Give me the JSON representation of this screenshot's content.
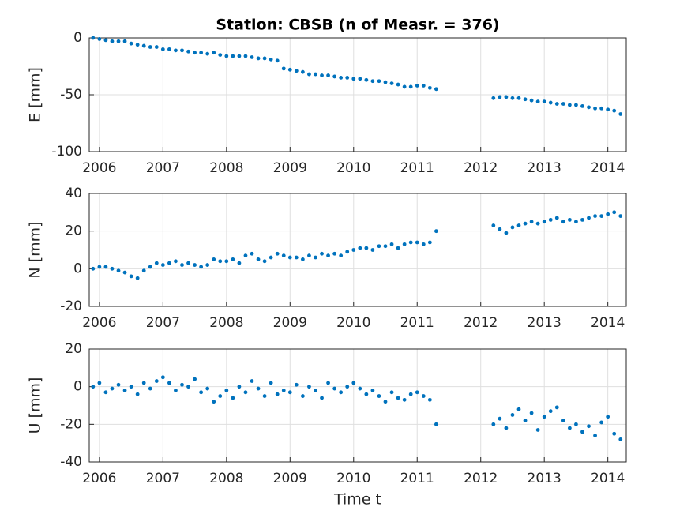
{
  "chart_data": [
    {
      "type": "scatter",
      "title": "Station: CBSB (n of Measr. = 376)",
      "ylabel": "E [mm]",
      "color": "#0072bd",
      "grid": true,
      "xlim": [
        2005.84,
        2014.29
      ],
      "xticks": [
        2006,
        2007,
        2008,
        2009,
        2010,
        2011,
        2012,
        2013,
        2014
      ],
      "ylim": [
        -100,
        0
      ],
      "yticks": [
        -100,
        -50,
        0
      ],
      "x": [
        2005.9,
        2006.0,
        2006.1,
        2006.2,
        2006.3,
        2006.4,
        2006.5,
        2006.6,
        2006.7,
        2006.8,
        2006.9,
        2007.0,
        2007.1,
        2007.2,
        2007.3,
        2007.4,
        2007.5,
        2007.6,
        2007.7,
        2007.8,
        2007.9,
        2008.0,
        2008.1,
        2008.2,
        2008.3,
        2008.4,
        2008.5,
        2008.6,
        2008.7,
        2008.8,
        2008.9,
        2009.0,
        2009.1,
        2009.2,
        2009.3,
        2009.4,
        2009.5,
        2009.6,
        2009.7,
        2009.8,
        2009.9,
        2010.0,
        2010.1,
        2010.2,
        2010.3,
        2010.4,
        2010.5,
        2010.6,
        2010.7,
        2010.8,
        2010.9,
        2011.0,
        2011.1,
        2011.2,
        2011.3,
        2012.2,
        2012.3,
        2012.4,
        2012.5,
        2012.6,
        2012.7,
        2012.8,
        2012.9,
        2013.0,
        2013.1,
        2013.2,
        2013.3,
        2013.4,
        2013.5,
        2013.6,
        2013.7,
        2013.8,
        2013.9,
        2014.0,
        2014.1,
        2014.2
      ],
      "values": [
        0,
        -1,
        -2,
        -3,
        -3,
        -3,
        -5,
        -6,
        -7,
        -8,
        -8,
        -10,
        -10,
        -11,
        -11,
        -12,
        -13,
        -13,
        -14,
        -13,
        -15,
        -16,
        -16,
        -16,
        -16,
        -17,
        -18,
        -18,
        -19,
        -20,
        -27,
        -28,
        -29,
        -30,
        -32,
        -32,
        -33,
        -33,
        -34,
        -35,
        -35,
        -36,
        -36,
        -37,
        -38,
        -38,
        -39,
        -40,
        -41,
        -43,
        -43,
        -42,
        -42,
        -44,
        -45,
        -53,
        -52,
        -52,
        -53,
        -53,
        -54,
        -55,
        -56,
        -56,
        -57,
        -58,
        -58,
        -59,
        -59,
        -60,
        -61,
        -62,
        -62,
        -63,
        -64,
        -67
      ]
    },
    {
      "type": "scatter",
      "ylabel": "N [mm]",
      "color": "#0072bd",
      "grid": true,
      "xlim": [
        2005.84,
        2014.29
      ],
      "xticks": [
        2006,
        2007,
        2008,
        2009,
        2010,
        2011,
        2012,
        2013,
        2014
      ],
      "ylim": [
        -20,
        40
      ],
      "yticks": [
        -20,
        0,
        20,
        40
      ],
      "x": [
        2005.9,
        2006.0,
        2006.1,
        2006.2,
        2006.3,
        2006.4,
        2006.5,
        2006.6,
        2006.7,
        2006.8,
        2006.9,
        2007.0,
        2007.1,
        2007.2,
        2007.3,
        2007.4,
        2007.5,
        2007.6,
        2007.7,
        2007.8,
        2007.9,
        2008.0,
        2008.1,
        2008.2,
        2008.3,
        2008.4,
        2008.5,
        2008.6,
        2008.7,
        2008.8,
        2008.9,
        2009.0,
        2009.1,
        2009.2,
        2009.3,
        2009.4,
        2009.5,
        2009.6,
        2009.7,
        2009.8,
        2009.9,
        2010.0,
        2010.1,
        2010.2,
        2010.3,
        2010.4,
        2010.5,
        2010.6,
        2010.7,
        2010.8,
        2010.9,
        2011.0,
        2011.1,
        2011.2,
        2011.3,
        2012.2,
        2012.3,
        2012.4,
        2012.5,
        2012.6,
        2012.7,
        2012.8,
        2012.9,
        2013.0,
        2013.1,
        2013.2,
        2013.3,
        2013.4,
        2013.5,
        2013.6,
        2013.7,
        2013.8,
        2013.9,
        2014.0,
        2014.1,
        2014.2
      ],
      "values": [
        0,
        1,
        1,
        0,
        -1,
        -2,
        -4,
        -5,
        -1,
        1,
        3,
        2,
        3,
        4,
        2,
        3,
        2,
        1,
        2,
        5,
        4,
        4,
        5,
        3,
        7,
        8,
        5,
        4,
        6,
        8,
        7,
        6,
        6,
        5,
        7,
        6,
        8,
        7,
        8,
        7,
        9,
        10,
        11,
        11,
        10,
        12,
        12,
        13,
        11,
        13,
        14,
        14,
        13,
        14,
        20,
        23,
        21,
        19,
        22,
        23,
        24,
        25,
        24,
        25,
        26,
        27,
        25,
        26,
        25,
        26,
        27,
        28,
        28,
        29,
        30,
        28
      ]
    },
    {
      "type": "scatter",
      "ylabel": "U [mm]",
      "xlabel": "Time t",
      "color": "#0072bd",
      "grid": true,
      "xlim": [
        2005.84,
        2014.29
      ],
      "xticks": [
        2006,
        2007,
        2008,
        2009,
        2010,
        2011,
        2012,
        2013,
        2014
      ],
      "ylim": [
        -40,
        20
      ],
      "yticks": [
        -40,
        -20,
        0,
        20
      ],
      "x": [
        2005.9,
        2006.0,
        2006.1,
        2006.2,
        2006.3,
        2006.4,
        2006.5,
        2006.6,
        2006.7,
        2006.8,
        2006.9,
        2007.0,
        2007.1,
        2007.2,
        2007.3,
        2007.4,
        2007.5,
        2007.6,
        2007.7,
        2007.8,
        2007.9,
        2008.0,
        2008.1,
        2008.2,
        2008.3,
        2008.4,
        2008.5,
        2008.6,
        2008.7,
        2008.8,
        2008.9,
        2009.0,
        2009.1,
        2009.2,
        2009.3,
        2009.4,
        2009.5,
        2009.6,
        2009.7,
        2009.8,
        2009.9,
        2010.0,
        2010.1,
        2010.2,
        2010.3,
        2010.4,
        2010.5,
        2010.6,
        2010.7,
        2010.8,
        2010.9,
        2011.0,
        2011.1,
        2011.2,
        2011.3,
        2012.2,
        2012.3,
        2012.4,
        2012.5,
        2012.6,
        2012.7,
        2012.8,
        2012.9,
        2013.0,
        2013.1,
        2013.2,
        2013.3,
        2013.4,
        2013.5,
        2013.6,
        2013.7,
        2013.8,
        2013.9,
        2014.0,
        2014.1,
        2014.2
      ],
      "values": [
        0,
        2,
        -3,
        -1,
        1,
        -2,
        0,
        -4,
        2,
        -1,
        3,
        5,
        2,
        -2,
        1,
        0,
        4,
        -3,
        -1,
        -8,
        -5,
        -2,
        -6,
        0,
        -3,
        3,
        -1,
        -5,
        2,
        -4,
        -2,
        -3,
        1,
        -5,
        0,
        -2,
        -6,
        2,
        -1,
        -3,
        0,
        2,
        -1,
        -4,
        -2,
        -5,
        -8,
        -3,
        -6,
        -7,
        -4,
        -3,
        -5,
        -7,
        -20,
        -20,
        -17,
        -22,
        -15,
        -12,
        -18,
        -14,
        -23,
        -16,
        -13,
        -11,
        -18,
        -22,
        -20,
        -24,
        -21,
        -26,
        -19,
        -16,
        -25,
        -28
      ]
    }
  ]
}
